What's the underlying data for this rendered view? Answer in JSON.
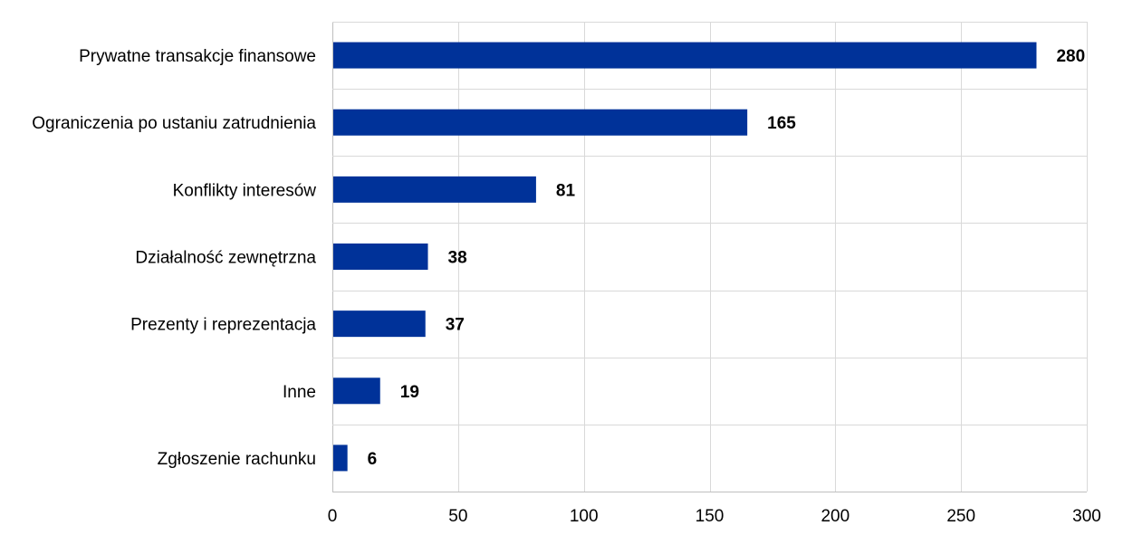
{
  "chart_data": {
    "type": "bar",
    "orientation": "horizontal",
    "categories": [
      "Prywatne transakcje finansowe",
      "Ograniczenia po ustaniu zatrudnienia",
      "Konflikty interesów",
      "Działalność zewnętrzna",
      "Prezenty i reprezentacja",
      "Inne",
      "Zgłoszenie rachunku"
    ],
    "values": [
      280,
      165,
      81,
      38,
      37,
      19,
      6
    ],
    "value_labels": [
      "280",
      "165",
      "81",
      "38",
      "37",
      "19",
      "6"
    ],
    "xlim": [
      0,
      300
    ],
    "x_ticks": [
      0,
      50,
      100,
      150,
      200,
      250,
      300
    ],
    "x_tick_labels": [
      "0",
      "50",
      "100",
      "150",
      "200",
      "250",
      "300"
    ],
    "grid": true,
    "legend": "none",
    "bar_color": "#003299",
    "title": "",
    "xlabel": "",
    "ylabel": ""
  }
}
